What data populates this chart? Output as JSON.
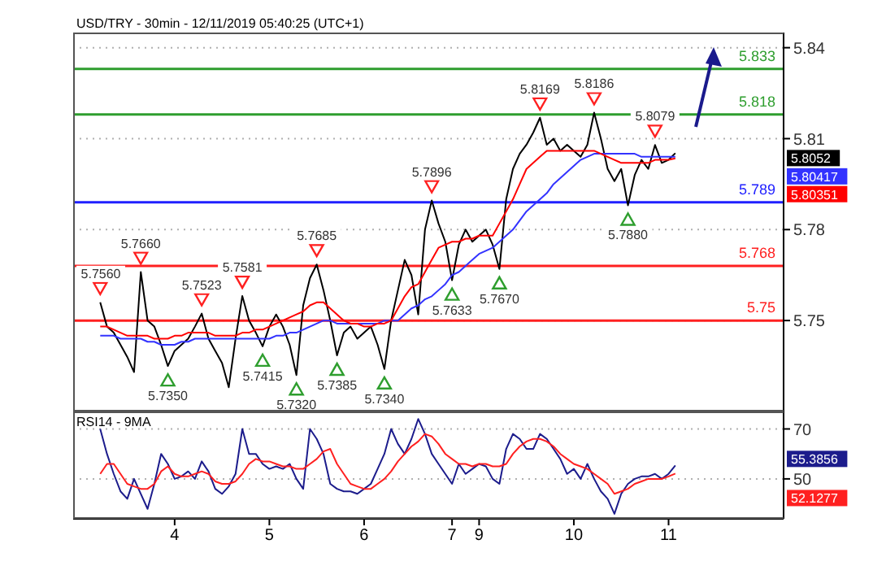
{
  "chart_data": [
    {
      "type": "line",
      "title": "USD/TRY - 30min - 12/11/2019 05:40:25 (UTC+1)",
      "categories": [
        null,
        null,
        null,
        null,
        null,
        null,
        null,
        null,
        null,
        null,
        null,
        null,
        null,
        null,
        null,
        null,
        null,
        null,
        null,
        null,
        null,
        null,
        null,
        null,
        null,
        null,
        null,
        null,
        null,
        null,
        null,
        null,
        null,
        null,
        null,
        null,
        null,
        null,
        null,
        null,
        null,
        null,
        null,
        null,
        null,
        null,
        null,
        null,
        null,
        null,
        null,
        null,
        null,
        null,
        null,
        null,
        null,
        null,
        null,
        null,
        null,
        null,
        null,
        null,
        null,
        null,
        null,
        null,
        null,
        null,
        null,
        null,
        null,
        null,
        null,
        null,
        null,
        null,
        null,
        null,
        null,
        null,
        null,
        null,
        null,
        null
      ],
      "series": [
        {
          "color": "#000000",
          "values": [
            5.756,
            5.748,
            5.746,
            5.742,
            5.738,
            5.733,
            5.766,
            5.75,
            5.748,
            5.742,
            5.735,
            5.74,
            5.742,
            5.744,
            5.748,
            5.7523,
            5.744,
            5.74,
            5.736,
            5.728,
            5.744,
            5.7581,
            5.75,
            5.746,
            5.7415,
            5.748,
            5.752,
            5.748,
            5.742,
            5.732,
            5.755,
            5.764,
            5.7685,
            5.76,
            5.75,
            5.7385,
            5.746,
            5.748,
            5.744,
            5.746,
            5.748,
            5.742,
            5.734,
            5.75,
            5.76,
            5.77,
            5.765,
            5.752,
            5.78,
            5.7896,
            5.782,
            5.776,
            5.7633,
            5.775,
            5.78,
            5.776,
            5.778,
            5.78,
            5.775,
            5.767,
            5.79,
            5.8,
            5.805,
            5.808,
            5.812,
            5.8169,
            5.808,
            5.81,
            5.806,
            5.808,
            5.806,
            5.804,
            5.808,
            5.8186,
            5.81,
            5.8,
            5.796,
            5.8,
            5.788,
            5.798,
            5.803,
            5.8,
            5.8079,
            5.802,
            5.803,
            5.8052
          ]
        },
        {
          "color": "#3333ff",
          "values": [
            5.745,
            5.745,
            5.745,
            5.744,
            5.744,
            5.744,
            5.744,
            5.743,
            5.743,
            5.742,
            5.742,
            5.742,
            5.743,
            5.743,
            5.744,
            5.744,
            5.744,
            5.744,
            5.744,
            5.744,
            5.744,
            5.744,
            5.744,
            5.744,
            5.744,
            5.744,
            5.745,
            5.745,
            5.746,
            5.746,
            5.747,
            5.748,
            5.749,
            5.75,
            5.75,
            5.749,
            5.749,
            5.749,
            5.749,
            5.749,
            5.749,
            5.749,
            5.75,
            5.75,
            5.75,
            5.752,
            5.754,
            5.755,
            5.757,
            5.758,
            5.76,
            5.762,
            5.765,
            5.766,
            5.768,
            5.77,
            5.772,
            5.773,
            5.774,
            5.776,
            5.778,
            5.78,
            5.783,
            5.786,
            5.788,
            5.79,
            5.792,
            5.795,
            5.797,
            5.799,
            5.801,
            5.803,
            5.804,
            5.805,
            5.805,
            5.805,
            5.805,
            5.805,
            5.805,
            5.805,
            5.804,
            5.804,
            5.804,
            5.804,
            5.804,
            5.804
          ]
        },
        {
          "color": "#ff0000",
          "values": [
            5.748,
            5.748,
            5.747,
            5.746,
            5.745,
            5.745,
            5.745,
            5.745,
            5.744,
            5.744,
            5.744,
            5.745,
            5.745,
            5.746,
            5.746,
            5.746,
            5.746,
            5.745,
            5.745,
            5.745,
            5.745,
            5.746,
            5.746,
            5.747,
            5.747,
            5.748,
            5.749,
            5.75,
            5.751,
            5.752,
            5.753,
            5.755,
            5.756,
            5.756,
            5.754,
            5.752,
            5.75,
            5.749,
            5.749,
            5.748,
            5.748,
            5.749,
            5.749,
            5.75,
            5.754,
            5.758,
            5.761,
            5.762,
            5.766,
            5.77,
            5.774,
            5.775,
            5.776,
            5.776,
            5.777,
            5.777,
            5.778,
            5.778,
            5.778,
            5.782,
            5.786,
            5.79,
            5.795,
            5.8,
            5.802,
            5.804,
            5.806,
            5.806,
            5.806,
            5.806,
            5.806,
            5.806,
            5.806,
            5.806,
            5.805,
            5.804,
            5.803,
            5.802,
            5.802,
            5.802,
            5.802,
            5.802,
            5.803,
            5.803,
            5.803,
            5.8035
          ]
        }
      ],
      "ylim": [
        5.72,
        5.845
      ],
      "yticks": [
        5.75,
        5.78,
        5.81,
        5.84
      ],
      "tick_labels": "y",
      "grid": "y",
      "ref_lines": [
        {
          "axis": "y",
          "value": 5.833,
          "label": "5.833",
          "color": "#2e9e2e"
        },
        {
          "axis": "y",
          "value": 5.818,
          "label": "5.818",
          "color": "#2e9e2e"
        },
        {
          "axis": "y",
          "value": 5.789,
          "label": "5.789",
          "color": "#2020ff"
        },
        {
          "axis": "y",
          "value": 5.768,
          "label": "5.768",
          "color": "#ff2020"
        },
        {
          "axis": "y",
          "value": 5.75,
          "label": "5.75",
          "color": "#ff2020"
        }
      ],
      "annotations": [
        {
          "text": "5.7560",
          "y": 5.756
        },
        {
          "text": "5.7660",
          "y": 5.766
        },
        {
          "text": "5.7350",
          "y": 5.735
        },
        {
          "text": "5.7523",
          "y": 5.7523
        },
        {
          "text": "5.7581",
          "y": 5.7581
        },
        {
          "text": "5.7415",
          "y": 5.7415
        },
        {
          "text": "5.7320",
          "y": 5.732
        },
        {
          "text": "5.7685",
          "y": 5.7685
        },
        {
          "text": "5.7385",
          "y": 5.7385
        },
        {
          "text": "5.7340",
          "y": 5.734
        },
        {
          "text": "5.7896",
          "y": 5.7896
        },
        {
          "text": "5.7633",
          "y": 5.7633
        },
        {
          "text": "5.7670",
          "y": 5.767
        },
        {
          "text": "5.8169",
          "y": 5.8169
        },
        {
          "text": "5.8186",
          "y": 5.8186
        },
        {
          "text": "5.7880",
          "y": 5.788
        },
        {
          "text": "5.8079",
          "y": 5.8079
        },
        "5.8052",
        "5.80417",
        "5.80351"
      ]
    },
    {
      "type": "line",
      "title": "RSI14 - 9MA",
      "categories": [
        null,
        null,
        null,
        null,
        null,
        null,
        null,
        null,
        null,
        null,
        null,
        "4",
        null,
        null,
        null,
        null,
        null,
        null,
        null,
        null,
        null,
        null,
        null,
        null,
        null,
        "5",
        null,
        null,
        null,
        null,
        null,
        null,
        null,
        null,
        null,
        null,
        null,
        null,
        null,
        "6",
        null,
        null,
        null,
        null,
        null,
        null,
        null,
        null,
        null,
        null,
        null,
        null,
        "7",
        null,
        null,
        null,
        "9",
        null,
        null,
        null,
        null,
        null,
        null,
        null,
        null,
        null,
        null,
        null,
        null,
        null,
        "10",
        null,
        null,
        null,
        null,
        null,
        null,
        null,
        null,
        null,
        null,
        null,
        null,
        null,
        "11",
        null
      ],
      "series": [
        {
          "color": "#1c1c8c",
          "values": [
            70,
            60,
            52,
            45,
            42,
            50,
            44,
            38,
            48,
            60,
            56,
            50,
            51,
            53,
            50,
            57,
            53,
            46,
            44,
            47,
            52,
            70,
            60,
            60,
            56,
            54,
            55,
            54,
            56,
            50,
            46,
            70,
            66,
            60,
            48,
            46,
            45,
            45,
            44,
            46,
            48,
            54,
            60,
            70,
            64,
            60,
            66,
            74,
            68,
            60,
            56,
            52,
            48,
            56,
            52,
            54,
            56,
            55,
            50,
            48,
            62,
            68,
            66,
            62,
            62,
            68,
            66,
            62,
            58,
            52,
            54,
            50,
            56,
            50,
            45,
            42,
            36,
            44,
            48,
            50,
            51,
            51,
            52,
            50,
            52,
            55.4
          ]
        },
        {
          "color": "#ff2020",
          "values": [
            52,
            56,
            56,
            52,
            48,
            47,
            46,
            46,
            48,
            53,
            55,
            52,
            51,
            51,
            52,
            53,
            52,
            49,
            48,
            48,
            49,
            52,
            56,
            58,
            57,
            57,
            56,
            55,
            55,
            54,
            54,
            56,
            58,
            61,
            62,
            56,
            52,
            48,
            47,
            46,
            46,
            48,
            50,
            53,
            57,
            60,
            63,
            65,
            68,
            67,
            64,
            60,
            58,
            56,
            56,
            55,
            56,
            56,
            55,
            55,
            56,
            60,
            63,
            65,
            66,
            66,
            65,
            63,
            60,
            58,
            56,
            55,
            54,
            52,
            50,
            48,
            44,
            45,
            46,
            48,
            49,
            50,
            50,
            50,
            51,
            52.1
          ]
        }
      ],
      "ylim": [
        34,
        77
      ],
      "yticks": [
        50,
        70
      ],
      "grid": "y",
      "annotations": [
        "55.3856",
        "52.1277"
      ]
    }
  ]
}
